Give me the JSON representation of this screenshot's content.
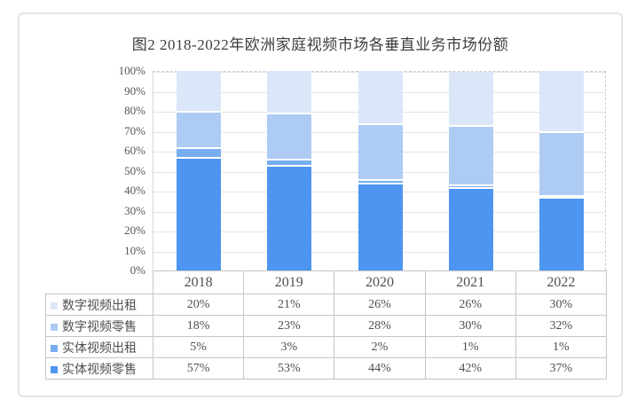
{
  "title": "图2 2018-2022年欧洲家庭视频市场各垂直业务市场份额",
  "chart_data": {
    "type": "bar",
    "stacked": true,
    "title": "图2 2018-2022年欧洲家庭视频市场各垂直业务市场份额",
    "categories": [
      "2018",
      "2019",
      "2020",
      "2021",
      "2022"
    ],
    "series": [
      {
        "name": "数字视频出租",
        "color": "#dbe7f9",
        "values": [
          20,
          21,
          26,
          26,
          30
        ]
      },
      {
        "name": "数字视频零售",
        "color": "#aecbf4",
        "values": [
          18,
          23,
          28,
          30,
          32
        ]
      },
      {
        "name": "实体视频出租",
        "color": "#78adf2",
        "values": [
          5,
          3,
          2,
          1,
          1
        ]
      },
      {
        "name": "实体视频零售",
        "color": "#4e95f2",
        "values": [
          57,
          53,
          44,
          42,
          37
        ]
      }
    ],
    "ylim": [
      0,
      100
    ],
    "ytick_labels": [
      "0%",
      "10%",
      "20%",
      "30%",
      "40%",
      "50%",
      "60%",
      "70%",
      "80%",
      "90%",
      "100%"
    ],
    "value_suffix": "%",
    "grid": true,
    "legend_position": "bottom-table"
  },
  "colors": {
    "card_border": "#e4e4e4",
    "table_border": "#c6c6c6",
    "gridline": "#e4e4e4",
    "text": "#4f4f4f",
    "separator": "#ffffff"
  }
}
